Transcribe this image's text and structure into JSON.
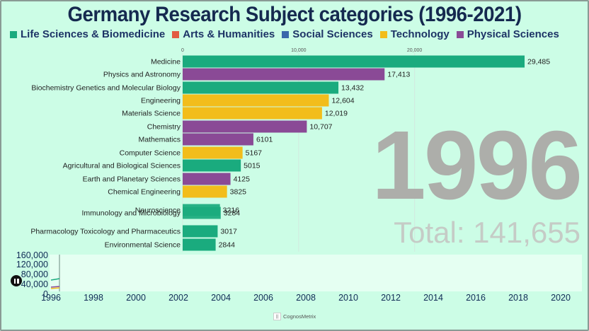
{
  "title": "Germany Research Subject categories (1996-2021)",
  "legend": [
    {
      "label": "Life Sciences & Biomedicine",
      "color": "#1aab7e"
    },
    {
      "label": "Arts & Humanities",
      "color": "#e25b43"
    },
    {
      "label": "Social Sciences",
      "color": "#3b67ab"
    },
    {
      "label": "Technology",
      "color": "#f2bd1b"
    },
    {
      "label": "Physical Sciences",
      "color": "#8a4a96"
    }
  ],
  "year": "1996",
  "total_label": "Total: 141,655",
  "footer_text": "CognosMetrix",
  "chart_data": {
    "type": "bar",
    "orientation": "horizontal",
    "xlim": [
      0,
      29485
    ],
    "x_ticks": [
      "0",
      "10,000",
      "20,000"
    ],
    "bars": [
      {
        "category": "Medicine",
        "value": 29485,
        "label": "29,485",
        "group": "Life Sciences & Biomedicine"
      },
      {
        "category": "Physics and Astronomy",
        "value": 17413,
        "label": "17,413",
        "group": "Physical Sciences"
      },
      {
        "category": "Biochemistry Genetics and Molecular Biology",
        "value": 13432,
        "label": "13,432",
        "group": "Life Sciences & Biomedicine"
      },
      {
        "category": "Engineering",
        "value": 12604,
        "label": "12,604",
        "group": "Technology"
      },
      {
        "category": "Materials Science",
        "value": 12019,
        "label": "12,019",
        "group": "Technology"
      },
      {
        "category": "Chemistry",
        "value": 10707,
        "label": "10,707",
        "group": "Physical Sciences"
      },
      {
        "category": "Mathematics",
        "value": 6101,
        "label": "6101",
        "group": "Physical Sciences"
      },
      {
        "category": "Computer Science",
        "value": 5167,
        "label": "5167",
        "group": "Technology"
      },
      {
        "category": "Agricultural and Biological Sciences",
        "value": 5015,
        "label": "5015",
        "group": "Life Sciences & Biomedicine"
      },
      {
        "category": "Earth and Planetary Sciences",
        "value": 4125,
        "label": "4125",
        "group": "Physical Sciences"
      },
      {
        "category": "Chemical Engineering",
        "value": 3825,
        "label": "3825",
        "group": "Technology"
      },
      {
        "category": "Neuroscience",
        "value": 3216,
        "label": "3216",
        "group": "Life Sciences & Biomedicine",
        "overlap": true
      },
      {
        "category": "Immunology and Microbiology",
        "value": 3284,
        "label": "3284",
        "group": "Life Sciences & Biomedicine",
        "overlap": true
      },
      {
        "category": "Pharmacology Toxicology and Pharmaceutics",
        "value": 3017,
        "label": "3017",
        "group": "Life Sciences & Biomedicine"
      },
      {
        "category": "Environmental Science",
        "value": 2844,
        "label": "2844",
        "group": "Life Sciences & Biomedicine"
      }
    ],
    "timeline": {
      "y_ticks": [
        "160,000",
        "120,000",
        "80,000",
        "40,000",
        "0"
      ],
      "x_ticks": [
        "1996",
        "1998",
        "2000",
        "2002",
        "2004",
        "2006",
        "2008",
        "2010",
        "2012",
        "2014",
        "2016",
        "2018",
        "2020"
      ]
    }
  }
}
